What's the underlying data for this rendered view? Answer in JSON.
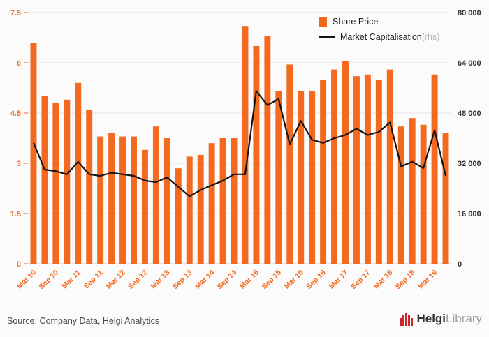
{
  "legend": {
    "share_price": "Share Price",
    "market_cap": "Market Capitalisation",
    "market_cap_suffix": " (rhs)"
  },
  "colors": {
    "bar": "#f2691f",
    "line": "#141414",
    "axis_left": "#f2691f",
    "axis_right": "#333333",
    "grid": "#e3e3e3",
    "baseline": "#cccccc",
    "logo_red": "#c9252b"
  },
  "chart_data": {
    "type": "bar",
    "title": "",
    "categories": [
      "Mar 10",
      "Jun 10",
      "Sep 10",
      "Dec 10",
      "Mar 11",
      "Jun 11",
      "Sep 11",
      "Dec 11",
      "Mar 12",
      "Jun 12",
      "Sep 12",
      "Dec 12",
      "Mar 13",
      "Jun 13",
      "Sep 13",
      "Dec 13",
      "Mar 14",
      "Jun 14",
      "Sep 14",
      "Dec 14",
      "Mar 15",
      "Jun 15",
      "Sep 15",
      "Dec 15",
      "Mar 16",
      "Jun 16",
      "Sep 16",
      "Dec 16",
      "Mar 17",
      "Jun 17",
      "Sep 17",
      "Dec 17",
      "Mar 18",
      "Jun 18",
      "Sep 18",
      "Dec 18",
      "Mar 19",
      "Jun 19"
    ],
    "x_tick_labels": [
      "Mar 10",
      "Sep 10",
      "Mar 11",
      "Sep 11",
      "Mar 12",
      "Sep 12",
      "Mar 13",
      "Sep 13",
      "Mar 14",
      "Sep 14",
      "Mar 15",
      "Sep 15",
      "Mar 16",
      "Sep 16",
      "Mar 17",
      "Sep 17",
      "Mar 18",
      "Sep 18",
      "Mar 19"
    ],
    "series": [
      {
        "name": "Share Price",
        "type": "bar",
        "axis": "left",
        "values": [
          6.6,
          5.0,
          4.8,
          4.9,
          5.4,
          4.6,
          3.8,
          3.9,
          3.8,
          3.8,
          3.4,
          4.1,
          3.75,
          2.85,
          3.2,
          3.25,
          3.6,
          3.75,
          3.75,
          7.1,
          6.5,
          6.8,
          5.15,
          5.95,
          5.15,
          5.15,
          5.5,
          5.8,
          6.05,
          5.6,
          5.65,
          5.5,
          5.8,
          4.1,
          4.35,
          4.15,
          5.65,
          3.9
        ]
      },
      {
        "name": "Market Capitalisation (rhs)",
        "type": "line",
        "axis": "right",
        "values": [
          38500,
          30000,
          29500,
          28500,
          32500,
          28500,
          28000,
          29000,
          28500,
          28000,
          26500,
          26000,
          27500,
          24500,
          21500,
          23500,
          25000,
          26500,
          28500,
          28500,
          55000,
          50500,
          52500,
          38000,
          45500,
          39500,
          38500,
          40000,
          41000,
          43000,
          41000,
          42000,
          45000,
          31000,
          32500,
          30500,
          42500,
          28000
        ]
      }
    ],
    "left_axis": {
      "min": 0,
      "max": 7.5,
      "ticks": [
        {
          "value": 0,
          "label": "0"
        },
        {
          "value": 1.5,
          "label": "1.5"
        },
        {
          "value": 3,
          "label": "3"
        },
        {
          "value": 4.5,
          "label": "4.5"
        },
        {
          "value": 6,
          "label": "6"
        },
        {
          "value": 7.5,
          "label": "7.5"
        }
      ]
    },
    "right_axis": {
      "min": 0,
      "max": 80000,
      "ticks": [
        {
          "value": 0,
          "label": "0"
        },
        {
          "value": 16000,
          "label": "16 000"
        },
        {
          "value": 32000,
          "label": "32 000"
        },
        {
          "value": 48000,
          "label": "48 000"
        },
        {
          "value": 64000,
          "label": "64 000"
        },
        {
          "value": 80000,
          "label": "80 000"
        }
      ]
    },
    "grid": true,
    "legend_position": "top-right"
  },
  "source": {
    "text": "Source: Company Data, Helgi Analytics"
  },
  "logo": {
    "brand": "Helgi",
    "suffix": "Library"
  }
}
